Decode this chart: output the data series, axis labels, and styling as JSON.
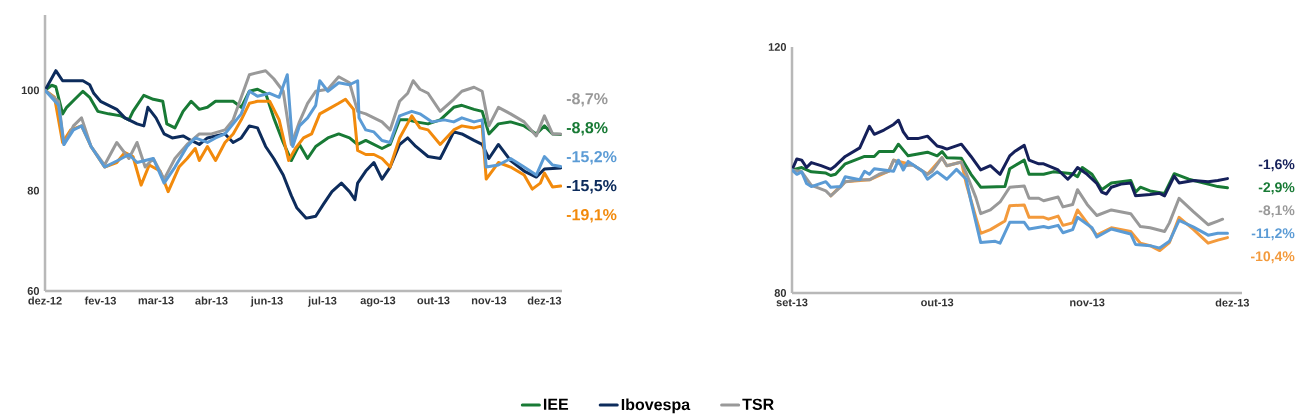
{
  "chart_data": [
    {
      "type": "line",
      "xlim": [
        "2012-12-27",
        "2014-01-13"
      ],
      "ylim": [
        60,
        115
      ],
      "yticks": [
        60,
        80,
        100
      ],
      "xticks": [
        {
          "value": "2012-12-27",
          "label": "dez-12"
        },
        {
          "value": "2013-02-06",
          "label": "fev-13"
        },
        {
          "value": "2013-03-19",
          "label": "mar-13"
        },
        {
          "value": "2013-04-29",
          "label": "abr-13"
        },
        {
          "value": "2013-06-09",
          "label": "jun-13"
        },
        {
          "value": "2013-07-20",
          "label": "jul-13"
        },
        {
          "value": "2013-08-30",
          "label": "ago-13"
        },
        {
          "value": "2013-10-10",
          "label": "out-13"
        },
        {
          "value": "2013-11-20",
          "label": "nov-13"
        },
        {
          "value": "2013-12-31",
          "label": "dez-13"
        }
      ],
      "legend": "bottom",
      "annotations": [
        "-8,8%",
        "-15,5%",
        "-19,1%",
        "-8,7%",
        "-15,2%"
      ],
      "series": [
        {
          "name": "IEE",
          "color": "#187a35",
          "x": [
            "2012-12-27",
            "2013-01-01",
            "2013-01-04",
            "2013-01-09",
            "2013-01-12",
            "2013-01-18",
            "2013-01-24",
            "2013-01-29",
            "2013-02-04",
            "2013-02-12",
            "2013-02-21",
            "2013-02-27",
            "2013-03-02",
            "2013-03-10",
            "2013-03-17",
            "2013-03-24",
            "2013-03-27",
            "2013-04-02",
            "2013-04-08",
            "2013-04-14",
            "2013-04-20",
            "2013-04-26",
            "2013-05-02",
            "2013-05-09",
            "2013-05-15",
            "2013-05-21",
            "2013-05-27",
            "2013-06-02",
            "2013-06-08",
            "2013-06-14",
            "2013-06-21",
            "2013-06-27",
            "2013-07-03",
            "2013-07-09",
            "2013-07-15",
            "2013-07-24",
            "2013-08-01",
            "2013-08-09",
            "2013-08-15",
            "2013-08-21",
            "2013-08-27",
            "2013-09-02",
            "2013-09-08",
            "2013-09-15",
            "2013-09-21",
            "2013-09-27",
            "2013-10-06",
            "2013-10-15",
            "2013-10-25",
            "2013-10-31",
            "2013-11-09",
            "2013-11-15",
            "2013-11-20",
            "2013-11-27",
            "2013-12-06",
            "2013-12-16",
            "2013-12-25",
            "2013-12-31",
            "2014-01-06",
            "2014-01-12"
          ],
          "values": [
            100,
            101,
            100.7,
            95.3,
            96.6,
            98.2,
            99.8,
            98.6,
            95.8,
            95.3,
            94.9,
            94.1,
            95.8,
            99,
            98.2,
            97.8,
            93.3,
            92.5,
            95.8,
            97.8,
            96.2,
            96.6,
            97.8,
            97.8,
            97.8,
            96.6,
            99.8,
            100.2,
            99.4,
            94.5,
            89.6,
            86,
            89.2,
            86.4,
            88.8,
            90.5,
            91.3,
            90.5,
            89.2,
            90,
            89.2,
            88.4,
            89.2,
            94.1,
            94.1,
            93.7,
            93.3,
            94.1,
            96.6,
            97,
            96.2,
            95.8,
            91.3,
            93.3,
            93.7,
            92.9,
            91.3,
            92.9,
            91.3,
            91.2
          ]
        },
        {
          "name": "Ibovespa",
          "color": "#0d2c5c",
          "x": [
            "2012-12-27",
            "2013-01-04",
            "2013-01-09",
            "2013-01-17",
            "2013-01-24",
            "2013-01-29",
            "2013-02-01",
            "2013-02-06",
            "2013-02-12",
            "2013-02-18",
            "2013-02-24",
            "2013-03-05",
            "2013-03-10",
            "2013-03-13",
            "2013-03-19",
            "2013-03-25",
            "2013-03-31",
            "2013-04-08",
            "2013-04-14",
            "2013-04-20",
            "2013-04-26",
            "2013-05-02",
            "2013-05-09",
            "2013-05-15",
            "2013-05-21",
            "2013-05-27",
            "2013-06-02",
            "2013-06-08",
            "2013-06-14",
            "2013-06-21",
            "2013-06-27",
            "2013-07-01",
            "2013-07-08",
            "2013-07-15",
            "2013-07-21",
            "2013-07-27",
            "2013-08-03",
            "2013-08-09",
            "2013-08-13",
            "2013-08-15",
            "2013-08-21",
            "2013-08-27",
            "2013-09-02",
            "2013-09-08",
            "2013-09-15",
            "2013-09-21",
            "2013-09-27",
            "2013-10-06",
            "2013-10-15",
            "2013-10-25",
            "2013-10-31",
            "2013-11-09",
            "2013-11-15",
            "2013-11-20",
            "2013-11-27",
            "2013-12-06",
            "2013-12-16",
            "2013-12-25",
            "2013-12-31",
            "2014-01-12"
          ],
          "values": [
            100,
            103.9,
            101.9,
            101.9,
            101.9,
            101.1,
            99.4,
            97.8,
            97,
            96.2,
            94.5,
            93.3,
            92.9,
            96.6,
            94.5,
            91.3,
            90.5,
            90.9,
            90,
            89.2,
            90.5,
            90.9,
            91.3,
            89.6,
            90.5,
            92.9,
            92.5,
            88.8,
            86.4,
            83.1,
            79,
            76.6,
            74.5,
            74.9,
            77.4,
            79.8,
            81.5,
            79.8,
            78.2,
            81.5,
            83.9,
            85.6,
            82.3,
            84.7,
            89.2,
            90.5,
            88.8,
            86.8,
            86.4,
            91.7,
            91.3,
            90,
            89.2,
            86.4,
            89.2,
            86,
            83.9,
            82.7,
            84.3,
            84.5
          ]
        },
        {
          "color": "#f28a0c",
          "x": [
            "2012-12-27",
            "2013-01-03",
            "2013-01-09",
            "2013-01-15",
            "2013-01-23",
            "2013-01-30",
            "2013-02-09",
            "2013-02-18",
            "2013-02-24",
            "2013-03-02",
            "2013-03-08",
            "2013-03-14",
            "2013-03-22",
            "2013-03-28",
            "2013-04-05",
            "2013-04-11",
            "2013-04-17",
            "2013-04-20",
            "2013-04-26",
            "2013-05-02",
            "2013-05-09",
            "2013-05-15",
            "2013-05-21",
            "2013-05-27",
            "2013-06-02",
            "2013-06-11",
            "2013-06-18",
            "2013-06-25",
            "2013-06-30",
            "2013-07-06",
            "2013-07-12",
            "2013-07-18",
            "2013-07-24",
            "2013-08-01",
            "2013-08-06",
            "2013-08-12",
            "2013-08-15",
            "2013-08-21",
            "2013-08-27",
            "2013-09-02",
            "2013-09-08",
            "2013-09-15",
            "2013-09-24",
            "2013-09-30",
            "2013-10-06",
            "2013-10-15",
            "2013-10-25",
            "2013-10-31",
            "2013-11-09",
            "2013-11-15",
            "2013-11-18",
            "2013-11-27",
            "2013-12-06",
            "2013-12-16",
            "2013-12-22",
            "2013-12-28",
            "2013-12-31",
            "2014-01-06",
            "2014-01-12"
          ],
          "values": [
            100,
            98.6,
            89.6,
            92.1,
            92.9,
            88.8,
            84.7,
            85.6,
            87.6,
            86.8,
            81.1,
            85.1,
            83.9,
            79.8,
            84.7,
            86.4,
            88.4,
            86,
            88.8,
            86,
            89.6,
            91.3,
            94.1,
            97.4,
            97.8,
            97.8,
            94.1,
            86,
            88.4,
            90.5,
            91.3,
            95.3,
            96.2,
            97.4,
            98.2,
            96.2,
            88,
            87.2,
            87.2,
            86.4,
            84.7,
            90.5,
            94.9,
            92.5,
            92.1,
            89.2,
            92.1,
            92.9,
            92.5,
            92.9,
            82.3,
            85.6,
            84.7,
            83.1,
            80.3,
            81.5,
            83.5,
            80.7,
            80.9
          ]
        },
        {
          "name": "TSR",
          "color": "#999999",
          "x": [
            "2012-12-27",
            "2013-01-06",
            "2013-01-10",
            "2013-01-17",
            "2013-01-23",
            "2013-01-30",
            "2013-02-09",
            "2013-02-18",
            "2013-02-27",
            "2013-03-05",
            "2013-03-11",
            "2013-03-17",
            "2013-03-25",
            "2013-04-02",
            "2013-04-11",
            "2013-04-20",
            "2013-04-29",
            "2013-05-09",
            "2013-05-15",
            "2013-05-21",
            "2013-05-27",
            "2013-06-02",
            "2013-06-08",
            "2013-06-14",
            "2013-06-21",
            "2013-06-27",
            "2013-07-03",
            "2013-07-09",
            "2013-07-15",
            "2013-07-24",
            "2013-08-01",
            "2013-08-09",
            "2013-08-15",
            "2013-08-21",
            "2013-08-27",
            "2013-09-02",
            "2013-09-08",
            "2013-09-15",
            "2013-09-21",
            "2013-09-25",
            "2013-09-30",
            "2013-10-06",
            "2013-10-15",
            "2013-10-25",
            "2013-10-31",
            "2013-11-09",
            "2013-11-15",
            "2013-11-20",
            "2013-11-27",
            "2013-12-06",
            "2013-12-16",
            "2013-12-25",
            "2013-12-31",
            "2014-01-06",
            "2014-01-12"
          ],
          "values": [
            100,
            97.8,
            89.2,
            92.9,
            94.5,
            88.8,
            85.1,
            89.6,
            86.4,
            89.6,
            84.7,
            86.4,
            82.3,
            86.4,
            89.2,
            91.3,
            91.3,
            92.1,
            94.1,
            98.6,
            103.1,
            103.5,
            103.9,
            102.3,
            99.8,
            89.2,
            93.7,
            97.4,
            99.8,
            100.2,
            102.7,
            101.5,
            95.8,
            95.3,
            94.5,
            93.7,
            92.1,
            97.8,
            99.4,
            101.9,
            100.2,
            99.4,
            95.8,
            98.2,
            99.8,
            100.6,
            99.8,
            92.9,
            96.6,
            95.3,
            93.7,
            90.9,
            94.9,
            91.3,
            91.3
          ]
        },
        {
          "color": "#5b9bd5",
          "x": [
            "2012-12-27",
            "2013-01-06",
            "2013-01-10",
            "2013-01-17",
            "2013-01-23",
            "2013-01-30",
            "2013-02-09",
            "2013-02-18",
            "2013-02-27",
            "2013-03-05",
            "2013-03-11",
            "2013-03-17",
            "2013-03-25",
            "2013-04-02",
            "2013-04-11",
            "2013-04-17",
            "2013-04-26",
            "2013-05-02",
            "2013-05-09",
            "2013-05-15",
            "2013-05-21",
            "2013-05-27",
            "2013-06-02",
            "2013-06-11",
            "2013-06-18",
            "2013-06-24",
            "2013-06-28",
            "2013-07-03",
            "2013-07-09",
            "2013-07-15",
            "2013-07-18",
            "2013-07-24",
            "2013-08-01",
            "2013-08-09",
            "2013-08-15",
            "2013-08-16",
            "2013-08-21",
            "2013-08-27",
            "2013-09-02",
            "2013-09-08",
            "2013-09-15",
            "2013-09-24",
            "2013-09-30",
            "2013-10-09",
            "2013-10-18",
            "2013-10-25",
            "2013-10-31",
            "2013-11-09",
            "2013-11-15",
            "2013-11-18",
            "2013-11-27",
            "2013-12-06",
            "2013-12-16",
            "2013-12-25",
            "2013-12-31",
            "2014-01-06",
            "2014-01-12"
          ],
          "values": [
            100,
            97,
            89.2,
            92.1,
            92.9,
            88.8,
            84.7,
            85.9,
            87.2,
            85.6,
            86,
            86.4,
            81.5,
            84.7,
            88.8,
            90.5,
            89.6,
            90.5,
            91.3,
            93.3,
            95.3,
            99.8,
            98.8,
            99.4,
            98.6,
            103.1,
            88.8,
            92.9,
            94.5,
            97,
            101.9,
            99.8,
            101.5,
            101.1,
            101.9,
            94.5,
            92.1,
            91.7,
            90,
            89.6,
            94.9,
            95.8,
            95.3,
            93.7,
            94.1,
            93.7,
            94.5,
            93.7,
            94.1,
            84.7,
            85.1,
            86.4,
            84.7,
            83.1,
            86.8,
            85.1,
            84.8
          ]
        }
      ]
    },
    {
      "type": "line",
      "xlim": [
        "2013-09-01",
        "2013-12-03"
      ],
      "ylim": [
        80,
        120
      ],
      "yticks": [
        80,
        120
      ],
      "xticks": [
        {
          "value": "2013-09-01",
          "label": "set-13"
        },
        {
          "value": "2013-10-01",
          "label": "out-13"
        },
        {
          "value": "2013-11-01",
          "label": "nov-13"
        },
        {
          "value": "2013-12-01",
          "label": "dez-13"
        }
      ],
      "annotations": [
        "-2,9%",
        "-1,6%",
        "-10,4%",
        "-8,1%",
        "-11,2%"
      ],
      "series": [
        {
          "color": "#187a35",
          "x": [
            "2013-09-01",
            "2013-09-03",
            "2013-09-05",
            "2013-09-08",
            "2013-09-09",
            "2013-09-10",
            "2013-09-12",
            "2013-09-16",
            "2013-09-18",
            "2013-09-19",
            "2013-09-22",
            "2013-09-23",
            "2013-09-25",
            "2013-09-27",
            "2013-09-29",
            "2013-10-01",
            "2013-10-02",
            "2013-10-03",
            "2013-10-06",
            "2013-10-08",
            "2013-10-10",
            "2013-10-15",
            "2013-10-16",
            "2013-10-19",
            "2013-10-20",
            "2013-10-23",
            "2013-10-25",
            "2013-10-29",
            "2013-10-30",
            "2013-10-31",
            "2013-11-02",
            "2013-11-04",
            "2013-11-06",
            "2013-11-10",
            "2013-11-11",
            "2013-11-12",
            "2013-11-14",
            "2013-11-17",
            "2013-11-19",
            "2013-11-22",
            "2013-11-26",
            "2013-11-28",
            "2013-11-30"
          ],
          "values": [
            100,
            100.4,
            99.7,
            99.5,
            99.1,
            99.3,
            101,
            102.2,
            102.2,
            103,
            103,
            104.2,
            102.3,
            102.6,
            102.9,
            102.3,
            103,
            102,
            101.9,
            99.3,
            97.2,
            97.3,
            100.2,
            101.6,
            99.3,
            99.3,
            99.7,
            99.4,
            98.9,
            100.4,
            99.3,
            96.8,
            97.9,
            98.3,
            96.4,
            97.2,
            96.6,
            96.2,
            99.4,
            98.5,
            97.7,
            97.3,
            97.1
          ]
        },
        {
          "color": "#15205a",
          "x": [
            "2013-09-01",
            "2013-09-02",
            "2013-09-03",
            "2013-09-04",
            "2013-09-05",
            "2013-09-07",
            "2013-09-09",
            "2013-09-10",
            "2013-09-12",
            "2013-09-15",
            "2013-09-17",
            "2013-09-18",
            "2013-09-20",
            "2013-09-22",
            "2013-09-23",
            "2013-09-24",
            "2013-09-25",
            "2013-09-27",
            "2013-09-29",
            "2013-10-01",
            "2013-10-02",
            "2013-10-03",
            "2013-10-06",
            "2013-10-08",
            "2013-10-10",
            "2013-10-12",
            "2013-10-14",
            "2013-10-16",
            "2013-10-17",
            "2013-10-19",
            "2013-10-20",
            "2013-10-22",
            "2013-10-23",
            "2013-10-26",
            "2013-10-28",
            "2013-10-29",
            "2013-10-30",
            "2013-11-01",
            "2013-11-03",
            "2013-11-04",
            "2013-11-05",
            "2013-11-06",
            "2013-11-08",
            "2013-11-10",
            "2013-11-11",
            "2013-11-14",
            "2013-11-16",
            "2013-11-17",
            "2013-11-19",
            "2013-11-20",
            "2013-11-23",
            "2013-11-26",
            "2013-11-28",
            "2013-11-30"
          ],
          "values": [
            100,
            101.8,
            101.6,
            100.4,
            101.2,
            100.7,
            100.1,
            100.7,
            102.2,
            103.6,
            107.1,
            105.8,
            106.5,
            107.4,
            108.1,
            106.2,
            105.1,
            105.1,
            105.5,
            103.9,
            103.7,
            103.4,
            104.2,
            102.2,
            100,
            100.7,
            99.3,
            102.3,
            103,
            104,
            101.6,
            101,
            101,
            100,
            98.5,
            99.3,
            100.4,
            99.3,
            97.8,
            96.4,
            96.1,
            97.2,
            97.7,
            97.9,
            95.8,
            96,
            96.2,
            95.8,
            99,
            97.9,
            98.3,
            98.1,
            98.3,
            98.6
          ]
        },
        {
          "color": "#f39a3c",
          "x": [
            "2013-09-09",
            "2013-09-12",
            "2013-09-17",
            "2013-09-21",
            "2013-09-22",
            "2013-09-26",
            "2013-09-29",
            "2013-10-02",
            "2013-10-03",
            "2013-10-06",
            "2013-10-07",
            "2013-10-09",
            "2013-10-10",
            "2013-10-12",
            "2013-10-15",
            "2013-10-16",
            "2013-10-19",
            "2013-10-20",
            "2013-10-23",
            "2013-10-24",
            "2013-10-26",
            "2013-10-27",
            "2013-10-29",
            "2013-10-30",
            "2013-11-01",
            "2013-11-03",
            "2013-11-06",
            "2013-11-10",
            "2013-11-12",
            "2013-11-14",
            "2013-11-16",
            "2013-11-18",
            "2013-11-20",
            "2013-11-23",
            "2013-11-26",
            "2013-11-28",
            "2013-11-30"
          ],
          "values": [
            95.8,
            98.1,
            98.4,
            99.8,
            101.6,
            100.8,
            99.3,
            102,
            100.7,
            101.3,
            97.8,
            92.3,
            89.7,
            90.3,
            91.7,
            94.2,
            94.3,
            92.3,
            92.3,
            92,
            92.5,
            91,
            91.4,
            93.5,
            91.4,
            89.4,
            90.6,
            90,
            88.1,
            87.7,
            86.9,
            88.2,
            92.3,
            90.3,
            88.1,
            88.6,
            89
          ]
        },
        {
          "color": "#999999",
          "x": [
            "2013-09-01",
            "2013-09-03",
            "2013-09-05",
            "2013-09-06",
            "2013-09-08",
            "2013-09-09",
            "2013-09-11",
            "2013-09-12",
            "2013-09-15",
            "2013-09-17",
            "2013-09-19",
            "2013-09-21",
            "2013-09-22",
            "2013-09-24",
            "2013-09-26",
            "2013-09-29",
            "2013-09-30",
            "2013-10-02",
            "2013-10-03",
            "2013-10-06",
            "2013-10-07",
            "2013-10-09",
            "2013-10-10",
            "2013-10-12",
            "2013-10-14",
            "2013-10-16",
            "2013-10-19",
            "2013-10-20",
            "2013-10-22",
            "2013-10-23",
            "2013-10-26",
            "2013-10-27",
            "2013-10-29",
            "2013-10-30",
            "2013-11-01",
            "2013-11-03",
            "2013-11-06",
            "2013-11-10",
            "2013-11-12",
            "2013-11-14",
            "2013-11-17",
            "2013-11-18",
            "2013-11-20",
            "2013-11-23",
            "2013-11-26",
            "2013-11-28",
            "2013-11-29"
          ],
          "values": [
            100,
            99.7,
            97.5,
            97.2,
            96.6,
            95.8,
            97.2,
            98.1,
            98.4,
            98.4,
            99.3,
            99.8,
            101.6,
            100.7,
            100.8,
            99.3,
            99.8,
            102,
            100.7,
            101.3,
            99.5,
            95.5,
            92.9,
            93.5,
            94.8,
            97.2,
            97.4,
            95.4,
            95.4,
            95,
            95.6,
            94,
            94.4,
            96.8,
            94.4,
            92.6,
            93.5,
            92.9,
            90.8,
            90.6,
            90,
            91.4,
            95.4,
            93.2,
            91.1,
            91.7,
            92
          ]
        },
        {
          "color": "#5b9bd5",
          "x": [
            "2013-09-01",
            "2013-09-02",
            "2013-09-03",
            "2013-09-04",
            "2013-09-05",
            "2013-09-08",
            "2013-09-09",
            "2013-09-11",
            "2013-09-12",
            "2013-09-15",
            "2013-09-16",
            "2013-09-17",
            "2013-09-18",
            "2013-09-22",
            "2013-09-23",
            "2013-09-24",
            "2013-09-25",
            "2013-09-28",
            "2013-09-29",
            "2013-10-01",
            "2013-10-03",
            "2013-10-05",
            "2013-10-07",
            "2013-10-08",
            "2013-10-10",
            "2013-10-13",
            "2013-10-14",
            "2013-10-16",
            "2013-10-19",
            "2013-10-20",
            "2013-10-23",
            "2013-10-24",
            "2013-10-26",
            "2013-10-27",
            "2013-10-29",
            "2013-10-30",
            "2013-11-02",
            "2013-11-03",
            "2013-11-06",
            "2013-11-10",
            "2013-11-11",
            "2013-11-14",
            "2013-11-16",
            "2013-11-18",
            "2013-11-20",
            "2013-11-23",
            "2013-11-26",
            "2013-11-28",
            "2013-11-30"
          ],
          "values": [
            100,
            99.3,
            99.7,
            97.8,
            97.3,
            98.1,
            97.2,
            97.3,
            98.9,
            98.4,
            99.8,
            99.3,
            100.2,
            99.8,
            101.6,
            100,
            101.4,
            99.8,
            98.5,
            99.7,
            98.5,
            100.1,
            98.5,
            94.9,
            88.2,
            88.4,
            88.1,
            91.5,
            91.5,
            90.4,
            90.8,
            90.6,
            91,
            89.8,
            90.3,
            92.3,
            90.6,
            89.1,
            90.4,
            89.6,
            87.9,
            87.7,
            87.3,
            88.4,
            91.8,
            90.7,
            89.4,
            89.7,
            89.7
          ]
        }
      ]
    }
  ]
}
